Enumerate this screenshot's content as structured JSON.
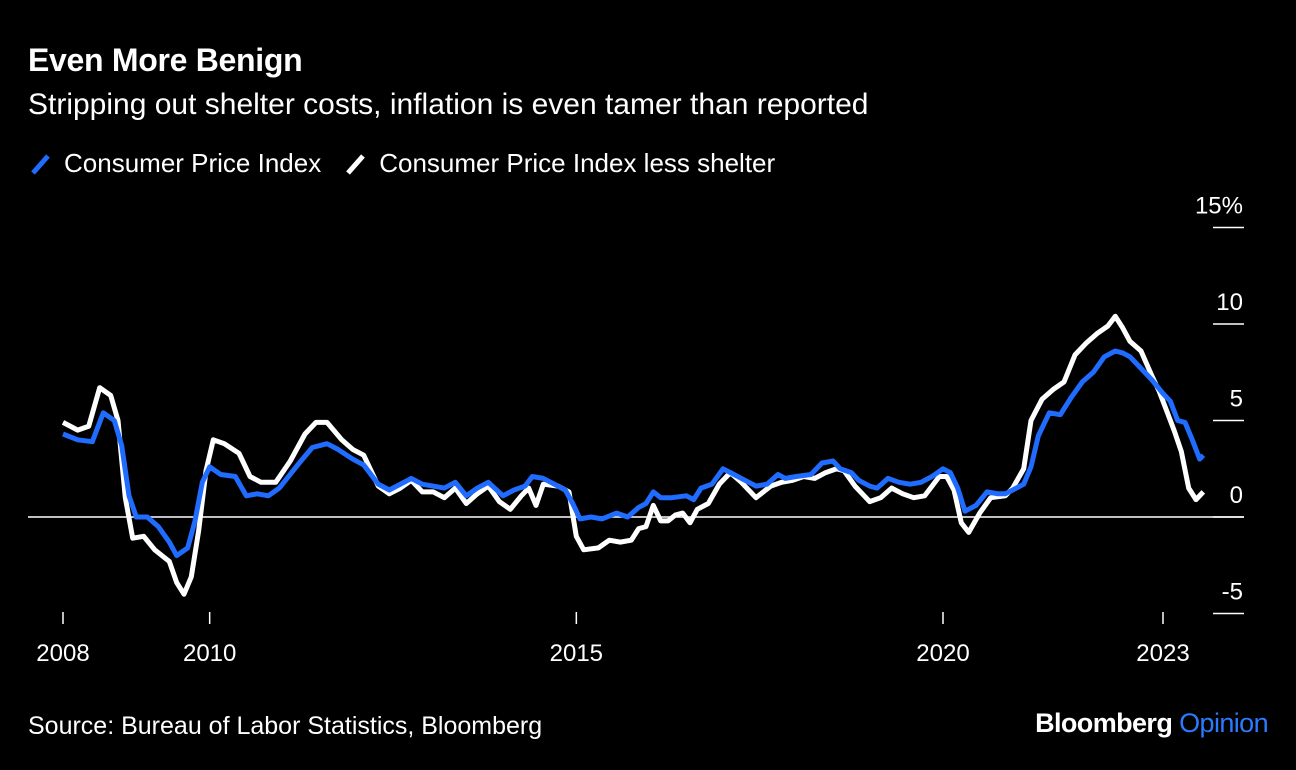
{
  "header": {
    "title": "Even More Benign",
    "subtitle": "Stripping out shelter costs, inflation is even tamer than reported"
  },
  "footer": {
    "source": "Source: Bureau of Labor Statistics, Bloomberg",
    "brand_main": "Bloomberg",
    "brand_accent": "Opinion"
  },
  "colors": {
    "background": "#000000",
    "cpi": "#1f6cff",
    "cpi_less_shelter": "#ffffff",
    "brand_accent": "#2b7bff"
  },
  "chart_data": {
    "type": "line",
    "ylim": [
      -5,
      15
    ],
    "xlim": [
      2008.0,
      2023.0
    ],
    "y_ticks": [
      {
        "value": 15,
        "label": "15%"
      },
      {
        "value": 10,
        "label": "10"
      },
      {
        "value": 5,
        "label": "5"
      },
      {
        "value": 0,
        "label": "0"
      },
      {
        "value": -5,
        "label": "-5"
      }
    ],
    "x_ticks": [
      {
        "value": 2008.0,
        "label": "2008"
      },
      {
        "value": 2010.0,
        "label": "2010"
      },
      {
        "value": 2015.0,
        "label": "2015"
      },
      {
        "value": 2020.0,
        "label": "2020"
      },
      {
        "value": 2023.0,
        "label": "2023"
      }
    ],
    "legend_position": "top-left",
    "grid": false,
    "series": [
      {
        "name": "Consumer Price Index",
        "color": "#1f6cff",
        "points": [
          [
            2008.0,
            4.3
          ],
          [
            2008.2,
            4.0
          ],
          [
            2008.4,
            3.9
          ],
          [
            2008.55,
            5.4
          ],
          [
            2008.7,
            5.0
          ],
          [
            2008.8,
            3.7
          ],
          [
            2008.9,
            1.1
          ],
          [
            2009.0,
            0.0
          ],
          [
            2009.15,
            0.0
          ],
          [
            2009.3,
            -0.5
          ],
          [
            2009.45,
            -1.3
          ],
          [
            2009.55,
            -2.0
          ],
          [
            2009.7,
            -1.6
          ],
          [
            2009.8,
            -0.2
          ],
          [
            2009.9,
            1.8
          ],
          [
            2010.0,
            2.6
          ],
          [
            2010.15,
            2.2
          ],
          [
            2010.35,
            2.1
          ],
          [
            2010.5,
            1.1
          ],
          [
            2010.65,
            1.2
          ],
          [
            2010.8,
            1.1
          ],
          [
            2010.95,
            1.5
          ],
          [
            2011.2,
            2.7
          ],
          [
            2011.4,
            3.6
          ],
          [
            2011.6,
            3.8
          ],
          [
            2011.75,
            3.5
          ],
          [
            2011.95,
            3.0
          ],
          [
            2012.1,
            2.7
          ],
          [
            2012.3,
            1.7
          ],
          [
            2012.45,
            1.4
          ],
          [
            2012.75,
            2.0
          ],
          [
            2012.9,
            1.7
          ],
          [
            2013.2,
            1.5
          ],
          [
            2013.35,
            1.8
          ],
          [
            2013.5,
            1.1
          ],
          [
            2013.65,
            1.5
          ],
          [
            2013.8,
            1.8
          ],
          [
            2014.0,
            1.1
          ],
          [
            2014.15,
            1.4
          ],
          [
            2014.3,
            1.6
          ],
          [
            2014.4,
            2.1
          ],
          [
            2014.55,
            2.0
          ],
          [
            2014.7,
            1.7
          ],
          [
            2014.85,
            1.4
          ],
          [
            2014.95,
            0.7
          ],
          [
            2015.05,
            -0.1
          ],
          [
            2015.2,
            0.0
          ],
          [
            2015.35,
            -0.1
          ],
          [
            2015.55,
            0.2
          ],
          [
            2015.7,
            0.0
          ],
          [
            2015.85,
            0.5
          ],
          [
            2015.95,
            0.7
          ],
          [
            2016.05,
            1.3
          ],
          [
            2016.15,
            1.0
          ],
          [
            2016.3,
            1.0
          ],
          [
            2016.5,
            1.1
          ],
          [
            2016.6,
            0.9
          ],
          [
            2016.7,
            1.5
          ],
          [
            2016.85,
            1.7
          ],
          [
            2017.0,
            2.5
          ],
          [
            2017.15,
            2.2
          ],
          [
            2017.3,
            1.9
          ],
          [
            2017.45,
            1.6
          ],
          [
            2017.6,
            1.7
          ],
          [
            2017.75,
            2.2
          ],
          [
            2017.85,
            2.0
          ],
          [
            2018.0,
            2.1
          ],
          [
            2018.2,
            2.2
          ],
          [
            2018.35,
            2.8
          ],
          [
            2018.5,
            2.9
          ],
          [
            2018.6,
            2.5
          ],
          [
            2018.75,
            2.3
          ],
          [
            2018.85,
            1.9
          ],
          [
            2019.0,
            1.6
          ],
          [
            2019.1,
            1.5
          ],
          [
            2019.25,
            2.0
          ],
          [
            2019.4,
            1.8
          ],
          [
            2019.55,
            1.7
          ],
          [
            2019.7,
            1.8
          ],
          [
            2019.85,
            2.1
          ],
          [
            2020.0,
            2.5
          ],
          [
            2020.1,
            2.3
          ],
          [
            2020.2,
            1.5
          ],
          [
            2020.3,
            0.3
          ],
          [
            2020.45,
            0.6
          ],
          [
            2020.6,
            1.3
          ],
          [
            2020.75,
            1.2
          ],
          [
            2020.85,
            1.2
          ],
          [
            2020.95,
            1.4
          ],
          [
            2021.1,
            1.7
          ],
          [
            2021.2,
            2.6
          ],
          [
            2021.3,
            4.2
          ],
          [
            2021.45,
            5.4
          ],
          [
            2021.6,
            5.3
          ],
          [
            2021.75,
            6.2
          ],
          [
            2021.9,
            7.0
          ],
          [
            2022.05,
            7.5
          ],
          [
            2022.2,
            8.3
          ],
          [
            2022.35,
            8.6
          ],
          [
            2022.45,
            8.5
          ],
          [
            2022.55,
            8.3
          ],
          [
            2022.7,
            7.7
          ],
          [
            2022.85,
            7.1
          ],
          [
            2023.0,
            6.4
          ],
          [
            2023.1,
            6.0
          ],
          [
            2023.2,
            5.0
          ],
          [
            2023.3,
            4.9
          ],
          [
            2023.4,
            4.0
          ],
          [
            2023.5,
            3.0
          ],
          [
            2023.55,
            3.2
          ]
        ]
      },
      {
        "name": "Consumer Price Index less shelter",
        "color": "#ffffff",
        "points": [
          [
            2008.0,
            4.9
          ],
          [
            2008.2,
            4.5
          ],
          [
            2008.35,
            4.7
          ],
          [
            2008.5,
            6.7
          ],
          [
            2008.65,
            6.3
          ],
          [
            2008.75,
            5.0
          ],
          [
            2008.85,
            1.0
          ],
          [
            2008.95,
            -1.1
          ],
          [
            2009.1,
            -1.0
          ],
          [
            2009.25,
            -1.7
          ],
          [
            2009.45,
            -2.3
          ],
          [
            2009.55,
            -3.4
          ],
          [
            2009.65,
            -4.0
          ],
          [
            2009.75,
            -3.1
          ],
          [
            2009.85,
            -0.7
          ],
          [
            2009.95,
            2.4
          ],
          [
            2010.05,
            4.0
          ],
          [
            2010.2,
            3.8
          ],
          [
            2010.4,
            3.3
          ],
          [
            2010.55,
            2.1
          ],
          [
            2010.7,
            1.8
          ],
          [
            2010.9,
            1.8
          ],
          [
            2011.1,
            2.9
          ],
          [
            2011.3,
            4.3
          ],
          [
            2011.45,
            4.9
          ],
          [
            2011.6,
            4.9
          ],
          [
            2011.8,
            4.0
          ],
          [
            2011.95,
            3.5
          ],
          [
            2012.1,
            3.2
          ],
          [
            2012.3,
            1.6
          ],
          [
            2012.45,
            1.2
          ],
          [
            2012.6,
            1.5
          ],
          [
            2012.75,
            1.9
          ],
          [
            2012.9,
            1.3
          ],
          [
            2013.05,
            1.3
          ],
          [
            2013.2,
            1.0
          ],
          [
            2013.35,
            1.5
          ],
          [
            2013.5,
            0.7
          ],
          [
            2013.65,
            1.2
          ],
          [
            2013.8,
            1.6
          ],
          [
            2013.95,
            0.8
          ],
          [
            2014.1,
            0.4
          ],
          [
            2014.25,
            1.1
          ],
          [
            2014.35,
            1.5
          ],
          [
            2014.45,
            0.6
          ],
          [
            2014.55,
            1.7
          ],
          [
            2014.75,
            1.6
          ],
          [
            2014.9,
            1.3
          ],
          [
            2015.0,
            -1.0
          ],
          [
            2015.1,
            -1.7
          ],
          [
            2015.3,
            -1.6
          ],
          [
            2015.45,
            -1.2
          ],
          [
            2015.6,
            -1.3
          ],
          [
            2015.75,
            -1.2
          ],
          [
            2015.85,
            -0.6
          ],
          [
            2015.95,
            -0.5
          ],
          [
            2016.05,
            0.6
          ],
          [
            2016.15,
            -0.2
          ],
          [
            2016.25,
            -0.2
          ],
          [
            2016.35,
            0.1
          ],
          [
            2016.45,
            0.2
          ],
          [
            2016.55,
            -0.3
          ],
          [
            2016.65,
            0.4
          ],
          [
            2016.8,
            0.7
          ],
          [
            2016.95,
            1.7
          ],
          [
            2017.1,
            2.3
          ],
          [
            2017.25,
            1.8
          ],
          [
            2017.45,
            1.0
          ],
          [
            2017.65,
            1.6
          ],
          [
            2017.8,
            1.8
          ],
          [
            2017.95,
            1.9
          ],
          [
            2018.1,
            2.1
          ],
          [
            2018.25,
            2.0
          ],
          [
            2018.4,
            2.3
          ],
          [
            2018.55,
            2.5
          ],
          [
            2018.65,
            2.4
          ],
          [
            2018.8,
            1.6
          ],
          [
            2018.9,
            1.2
          ],
          [
            2019.0,
            0.8
          ],
          [
            2019.15,
            1.0
          ],
          [
            2019.3,
            1.5
          ],
          [
            2019.45,
            1.2
          ],
          [
            2019.6,
            1.0
          ],
          [
            2019.75,
            1.1
          ],
          [
            2019.95,
            2.1
          ],
          [
            2020.05,
            2.1
          ],
          [
            2020.15,
            1.4
          ],
          [
            2020.25,
            -0.3
          ],
          [
            2020.35,
            -0.8
          ],
          [
            2020.5,
            0.2
          ],
          [
            2020.65,
            1.0
          ],
          [
            2020.85,
            1.1
          ],
          [
            2020.95,
            1.5
          ],
          [
            2021.1,
            2.5
          ],
          [
            2021.2,
            5.0
          ],
          [
            2021.35,
            6.1
          ],
          [
            2021.5,
            6.6
          ],
          [
            2021.65,
            7.0
          ],
          [
            2021.8,
            8.4
          ],
          [
            2021.95,
            9.0
          ],
          [
            2022.1,
            9.5
          ],
          [
            2022.25,
            9.9
          ],
          [
            2022.35,
            10.4
          ],
          [
            2022.45,
            9.8
          ],
          [
            2022.55,
            9.1
          ],
          [
            2022.7,
            8.6
          ],
          [
            2022.85,
            7.3
          ],
          [
            2022.95,
            6.5
          ],
          [
            2023.05,
            5.5
          ],
          [
            2023.15,
            4.5
          ],
          [
            2023.25,
            3.4
          ],
          [
            2023.35,
            1.5
          ],
          [
            2023.45,
            0.9
          ],
          [
            2023.55,
            1.3
          ]
        ]
      }
    ]
  }
}
